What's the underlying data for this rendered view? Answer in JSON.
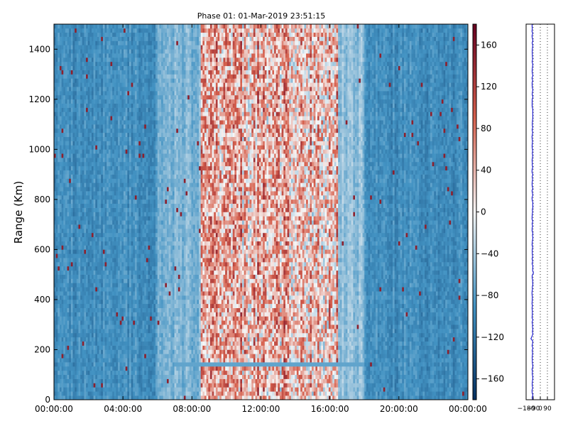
{
  "title": "Phase 01: 01-Mar-2019 23:51:15",
  "chart_data": [
    {
      "type": "heatmap",
      "title": "Phase 01: 01-Mar-2019 23:51:15",
      "xlabel": "",
      "ylabel": "Range (Km)",
      "x_ticks": [
        "00:00:00",
        "04:00:00",
        "08:00:00",
        "12:00:00",
        "16:00:00",
        "20:00:00",
        "00:00:00"
      ],
      "x_tick_hours": [
        0,
        4,
        8,
        12,
        16,
        20,
        24
      ],
      "xlim_hours": [
        0,
        24
      ],
      "ylim": [
        0,
        1500
      ],
      "y_ticks": [
        0,
        200,
        400,
        600,
        800,
        1000,
        1200,
        1400
      ],
      "colormap": "RdBu_r",
      "color_low": "#053061",
      "color_mid": "#f7f7f7",
      "color_high": "#67001f",
      "colorbar": {
        "vmin": -180,
        "vmax": 180,
        "ticks": [
          -160,
          -120,
          -80,
          -40,
          0,
          40,
          80,
          120,
          160
        ],
        "tick_labels": [
          "−160",
          "−120",
          "−80",
          "−40",
          "0",
          "40",
          "80",
          "120",
          "160"
        ]
      },
      "regions": [
        {
          "description": "night",
          "hours": [
            0,
            6
          ],
          "typical_value": -95
        },
        {
          "description": "dawn transition",
          "hours": [
            6,
            8.5
          ],
          "typical_value": -60
        },
        {
          "description": "day",
          "hours": [
            8.5,
            16.5
          ],
          "typical_value": 40
        },
        {
          "description": "dusk transition",
          "hours": [
            16.5,
            18
          ],
          "typical_value": -50
        },
        {
          "description": "night",
          "hours": [
            18,
            24
          ],
          "typical_value": -95
        }
      ],
      "horizontal_band": {
        "range_km": 140,
        "hours": [
          7,
          18
        ],
        "value": -75
      }
    },
    {
      "type": "line",
      "xlabel": "",
      "ylabel": "",
      "xlim": [
        -180,
        180
      ],
      "ylim": [
        0,
        1500
      ],
      "x_ticks": [
        -180,
        -90,
        0,
        90
      ],
      "x_tick_labels": [
        "−180",
        "−90",
        "0",
        "90"
      ],
      "grid": true,
      "line_color": "#0000cc",
      "mean_phase_value": -100
    }
  ]
}
